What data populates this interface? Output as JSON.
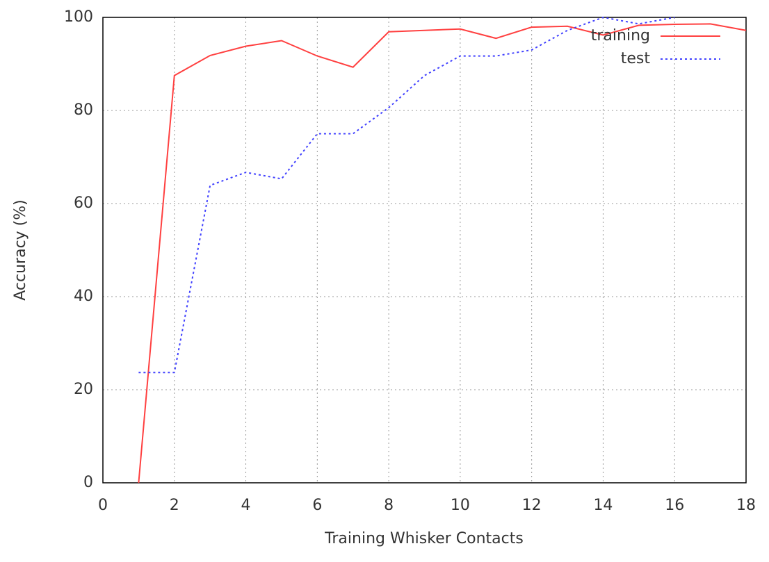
{
  "chart_data": {
    "type": "line",
    "xlabel": "Training Whisker Contacts",
    "ylabel": "Accuracy (%)",
    "x": [
      1,
      2,
      3,
      4,
      5,
      6,
      7,
      8,
      9,
      10,
      11,
      12,
      13,
      14,
      15,
      16,
      17,
      18
    ],
    "series": [
      {
        "name": "training",
        "color": "#ff4040",
        "dash": "solid",
        "values": [
          0,
          87.5,
          91.8,
          93.8,
          95,
          91.7,
          89.3,
          96.9,
          97.2,
          97.5,
          95.5,
          97.9,
          98.1,
          96.2,
          98.3,
          98.5,
          98.6,
          97.2
        ]
      },
      {
        "name": "test",
        "color": "#4040ff",
        "dash": "dotted",
        "values": [
          23.7,
          23.7,
          63.9,
          66.7,
          65.3,
          75,
          75,
          80.6,
          87.5,
          91.7,
          91.7,
          93,
          97.2,
          100,
          98.6,
          100,
          null,
          null
        ]
      }
    ],
    "xlim": [
      0,
      18
    ],
    "xticks": [
      0,
      2,
      4,
      6,
      8,
      10,
      12,
      14,
      16,
      18
    ],
    "ylim": [
      0,
      100
    ],
    "yticks": [
      0,
      20,
      40,
      60,
      80,
      100
    ],
    "grid": true,
    "legend": "top-right"
  }
}
